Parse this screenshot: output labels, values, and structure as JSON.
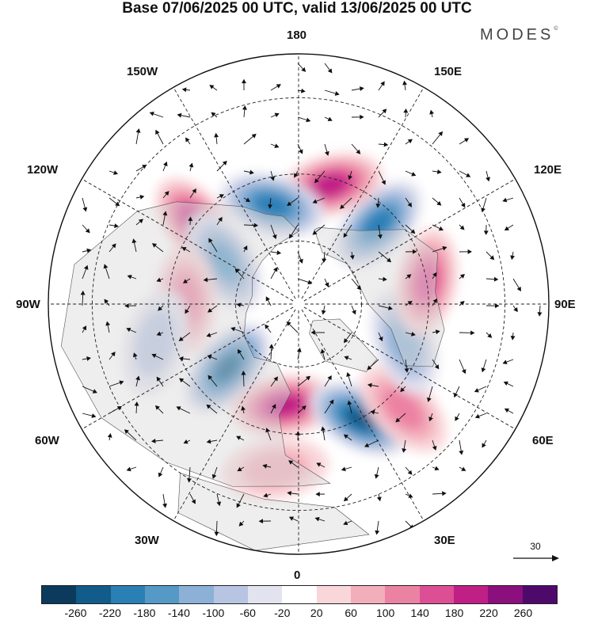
{
  "title": "Base 07/06/2025 00 UTC, valid 13/06/2025 00 UTC",
  "brand": "MODES",
  "brand_mark": "©",
  "longitude_labels": {
    "top": "180",
    "bottom": "0",
    "left": "90W",
    "right": "90E",
    "upper_left": "150W",
    "upper_right": "150E",
    "mid_upper_left": "120W",
    "mid_upper_right": "120E",
    "mid_lower_left": "60W",
    "mid_lower_right": "60E",
    "lower_left": "30W",
    "lower_right": "30E"
  },
  "vector_reference": {
    "label": "30",
    "value": 30
  },
  "colorbar": {
    "ticks": [
      "-260",
      "-220",
      "-180",
      "-140",
      "-100",
      "-60",
      "-20",
      "20",
      "60",
      "100",
      "140",
      "180",
      "220",
      "260"
    ],
    "colors": [
      "#0b3a5c",
      "#115c8a",
      "#2a7fb5",
      "#5599c7",
      "#8cb0d6",
      "#b8c5e2",
      "#e3e3ef",
      "#ffffff",
      "#f9d6d9",
      "#f3aebb",
      "#ec82a3",
      "#dd4f95",
      "#c01f86",
      "#8b0f7c",
      "#4e0a6a"
    ]
  },
  "map": {
    "projection": "north-polar-stereographic",
    "anomaly_centers": [
      {
        "lon": -135,
        "lat": 55,
        "value": -200
      },
      {
        "lon": -165,
        "lat": 52,
        "value": 200
      },
      {
        "lon": 165,
        "lat": 58,
        "value": -180
      },
      {
        "lon": 128,
        "lat": 50,
        "value": 200
      },
      {
        "lon": 120,
        "lat": 63,
        "value": -160
      },
      {
        "lon": 92,
        "lat": 55,
        "value": 100
      },
      {
        "lon": 75,
        "lat": 45,
        "value": -80
      },
      {
        "lon": 48,
        "lat": 60,
        "value": -220
      },
      {
        "lon": 8,
        "lat": 58,
        "value": 180
      },
      {
        "lon": -28,
        "lat": 50,
        "value": -240
      },
      {
        "lon": -45,
        "lat": 45,
        "value": 100
      },
      {
        "lon": -70,
        "lat": 55,
        "value": -100
      },
      {
        "lon": -100,
        "lat": 50,
        "value": 140
      },
      {
        "lon": 8,
        "lat": 40,
        "value": 80
      }
    ]
  }
}
